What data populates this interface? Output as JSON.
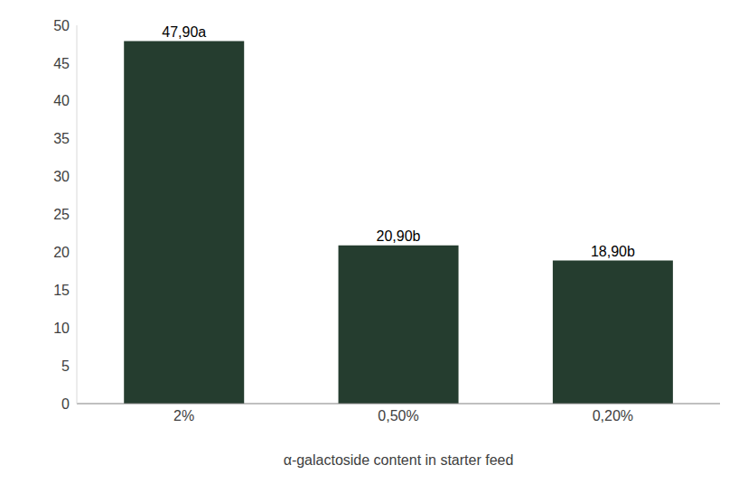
{
  "chart_data": {
    "type": "bar",
    "x_label": "α-galactoside content in starter feed",
    "categories": [
      "2%",
      "0,50%",
      "0,20%"
    ],
    "values": [
      47.9,
      20.9,
      18.9
    ],
    "value_labels": [
      "47,90a",
      "20,90b",
      "18,90b"
    ],
    "data_labels": true,
    "color": "#253d2f",
    "ylim": [
      0,
      50
    ],
    "yticks": [
      0,
      5,
      10,
      15,
      20,
      25,
      30,
      35,
      40,
      45,
      50
    ],
    "grid": false
  }
}
